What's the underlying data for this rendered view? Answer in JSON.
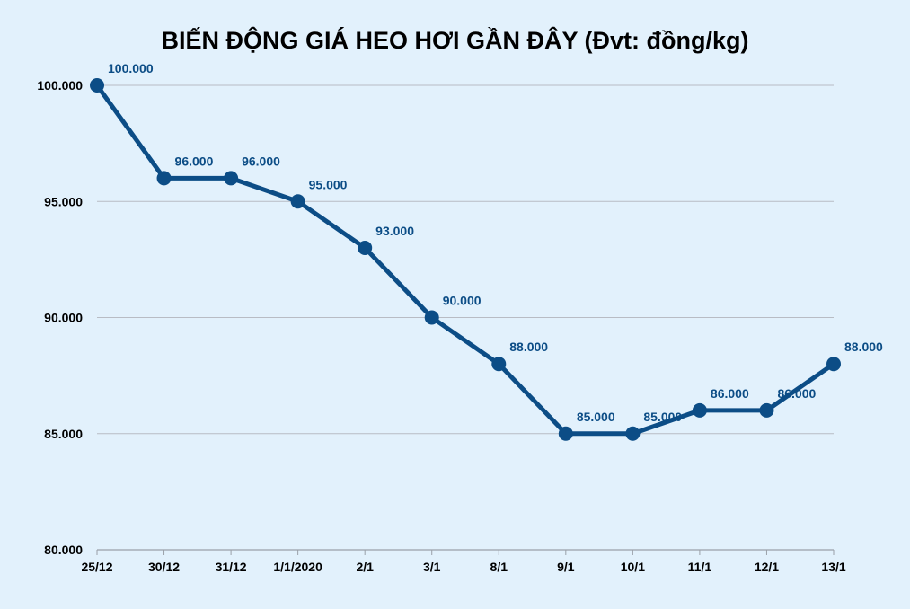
{
  "chart_data": {
    "type": "line",
    "title": "BIẾN ĐỘNG GIÁ HEO HƠI GẦN ĐÂY (Đvt: đồng/kg)",
    "xlabel": "",
    "ylabel": "",
    "categories": [
      "25/12",
      "30/12",
      "31/12",
      "1/1/2020",
      "2/1",
      "3/1",
      "8/1",
      "9/1",
      "10/1",
      "11/1",
      "12/1",
      "13/1"
    ],
    "values": [
      100000,
      96000,
      96000,
      95000,
      93000,
      90000,
      88000,
      85000,
      85000,
      86000,
      86000,
      88000
    ],
    "data_labels": [
      "100.000",
      "96.000",
      "96.000",
      "95.000",
      "93.000",
      "90.000",
      "88.000",
      "85.000",
      "85.000",
      "86.000",
      "86.000",
      "88.000"
    ],
    "ylim": [
      80000,
      100000
    ],
    "y_ticks": [
      80000,
      85000,
      90000,
      95000,
      100000
    ],
    "y_tick_labels": [
      "80.000",
      "85.000",
      "90.000",
      "95.000",
      "100.000"
    ],
    "grid": true,
    "legend": "none",
    "colors": {
      "line": "#0c4d86",
      "label": "#0c4d86",
      "grid": "#b8bcc4",
      "background": "#e2f1fc"
    }
  }
}
